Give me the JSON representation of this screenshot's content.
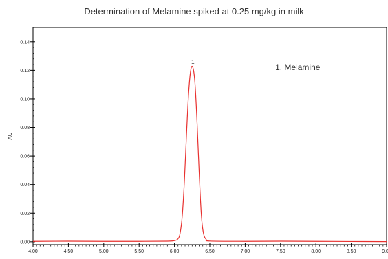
{
  "chart_data": {
    "type": "line",
    "title": "Determination of Melamine spiked at 0.25 mg/kg in milk",
    "xlabel": "",
    "ylabel": "AU",
    "xlim": [
      4.0,
      9.0
    ],
    "ylim": [
      -0.002,
      0.15
    ],
    "x_ticks": [
      "4.00",
      "4.50",
      "5.00",
      "5.50",
      "6.00",
      "6.50",
      "7.00",
      "7.50",
      "8.00",
      "8.50",
      "9.00"
    ],
    "y_ticks": [
      "0.00",
      "0.02",
      "0.04",
      "0.06",
      "0.08",
      "0.10",
      "0.12",
      "0.14"
    ],
    "grid": false,
    "series": [
      {
        "color": "#e8312f",
        "x": [
          4.0,
          4.5,
          5.0,
          5.5,
          5.9,
          6.0,
          6.05,
          6.08,
          6.11,
          6.14,
          6.17,
          6.2,
          6.23,
          6.26,
          6.29,
          6.32,
          6.35,
          6.38,
          6.41,
          6.45,
          6.5,
          7.0,
          7.5,
          8.0,
          8.5,
          9.0
        ],
        "y": [
          0.0003,
          0.0004,
          0.0003,
          0.0003,
          0.0004,
          0.0008,
          0.002,
          0.006,
          0.018,
          0.042,
          0.075,
          0.104,
          0.12,
          0.122,
          0.111,
          0.083,
          0.048,
          0.019,
          0.006,
          0.0015,
          0.0005,
          0.0003,
          0.0004,
          0.0003,
          0.0002,
          0.0001
        ]
      }
    ],
    "annotations": [
      {
        "text": "1",
        "x": 6.26,
        "y": 0.124
      }
    ],
    "legend": {
      "text": "1. Melamine",
      "placement": "top-right"
    }
  }
}
